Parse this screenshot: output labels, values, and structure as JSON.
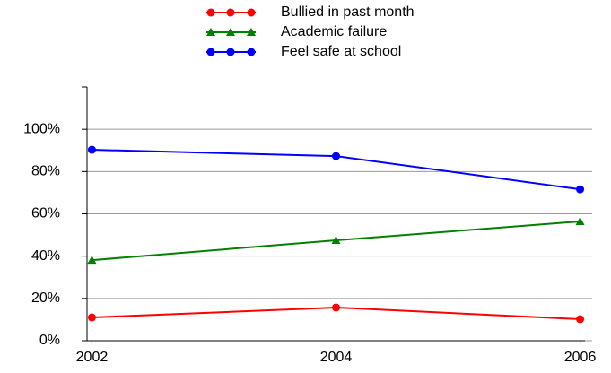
{
  "chart_data": {
    "type": "line",
    "x": [
      2002,
      2004,
      2006
    ],
    "xlim": [
      2001.96,
      2006.04
    ],
    "xticks": [
      2002,
      2004,
      2006
    ],
    "ylim": [
      0,
      120
    ],
    "yticks": [
      {
        "value": 0,
        "label": "0%"
      },
      {
        "value": 20,
        "label": "20%"
      },
      {
        "value": 40,
        "label": "40%"
      },
      {
        "value": 60,
        "label": "60%"
      },
      {
        "value": 80,
        "label": "80%"
      },
      {
        "value": 100,
        "label": "100%"
      }
    ],
    "grid": true,
    "legend": "top",
    "series": [
      {
        "name": "Bullied in past month",
        "color": "#ff0000",
        "marker": "circle",
        "values": [
          11,
          15.7,
          10.2
        ]
      },
      {
        "name": "Academic failure",
        "color": "#008000",
        "marker": "triangle",
        "values": [
          38.1,
          47.5,
          56.4
        ]
      },
      {
        "name": "Feel safe at school",
        "color": "#0000ff",
        "marker": "circle",
        "values": [
          90.3,
          87.3,
          71.6
        ]
      }
    ]
  }
}
